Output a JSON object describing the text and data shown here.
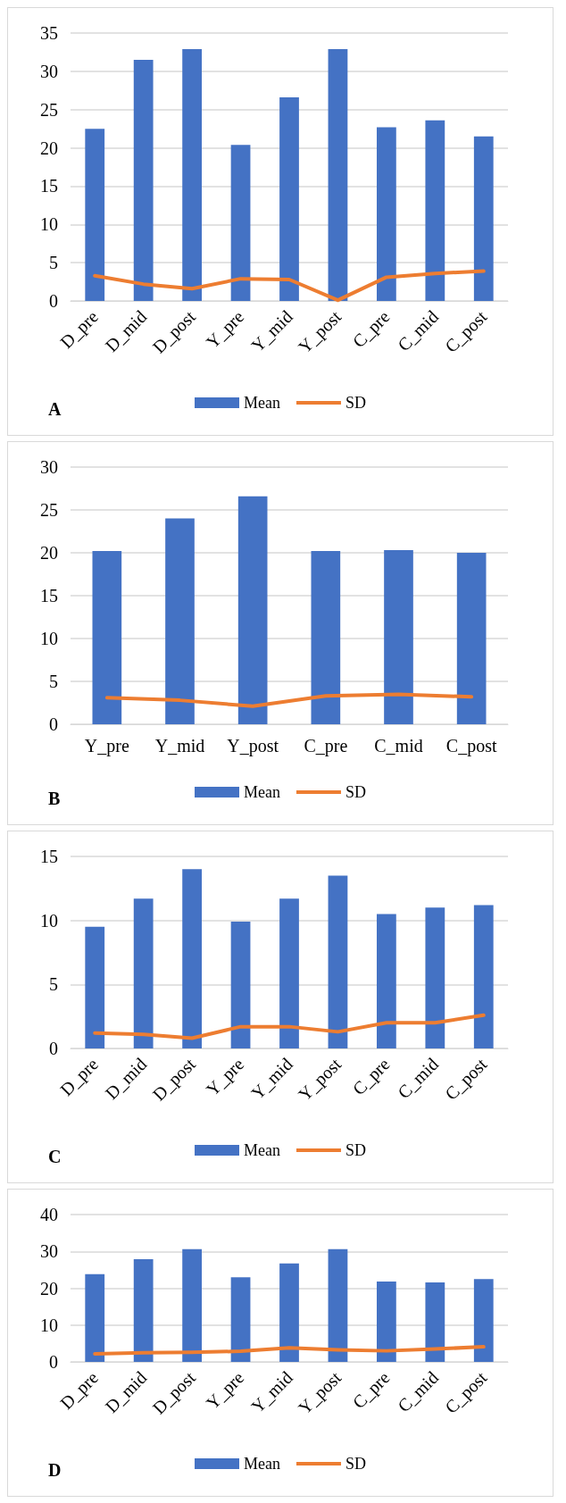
{
  "chart_data": [
    {
      "type": "bar",
      "title": "A",
      "categories": [
        "D_pre",
        "D_mid",
        "D_post",
        "Y_pre",
        "Y_mid",
        "Y_post",
        "C_pre",
        "C_mid",
        "C_post"
      ],
      "series": [
        {
          "name": "Mean",
          "color": "#4472c4",
          "values": [
            22.5,
            31.5,
            32.9,
            20.4,
            26.6,
            32.9,
            22.7,
            23.6,
            21.5
          ]
        },
        {
          "name": "SD",
          "type": "line",
          "color": "#ed7d31",
          "values": [
            3.3,
            2.2,
            1.6,
            2.9,
            2.8,
            0.1,
            3.1,
            3.6,
            3.9
          ]
        }
      ],
      "ylim": [
        0,
        35
      ],
      "yticks": [
        0,
        5,
        10,
        15,
        20,
        25,
        30,
        35
      ],
      "grid": "y",
      "legend": "bottom",
      "marker": "none",
      "line_style": "solid"
    },
    {
      "type": "bar",
      "title": "B",
      "categories": [
        "Y_pre",
        "Y_mid",
        "Y_post",
        "C_pre",
        "C_mid",
        "C_post"
      ],
      "series": [
        {
          "name": "Mean",
          "color": "#4472c4",
          "values": [
            20.2,
            24.0,
            26.6,
            20.2,
            20.3,
            20.0
          ]
        },
        {
          "name": "SD",
          "type": "line",
          "color": "#ed7d31",
          "values": [
            3.1,
            2.8,
            2.1,
            3.3,
            3.5,
            3.2
          ]
        }
      ],
      "ylim": [
        0,
        30
      ],
      "yticks": [
        0,
        5,
        10,
        15,
        20,
        25,
        30
      ],
      "grid": "y",
      "legend": "bottom",
      "marker": "none",
      "line_style": "solid"
    },
    {
      "type": "bar",
      "title": "C",
      "categories": [
        "D_pre",
        "D_mid",
        "D_post",
        "Y_pre",
        "Y_mid",
        "Y_post",
        "C_pre",
        "C_mid",
        "C_post"
      ],
      "series": [
        {
          "name": "Mean",
          "color": "#4472c4",
          "values": [
            9.5,
            11.7,
            14.0,
            9.9,
            11.7,
            13.5,
            10.5,
            11.0,
            11.2
          ]
        },
        {
          "name": "SD",
          "type": "line",
          "color": "#ed7d31",
          "values": [
            1.2,
            1.1,
            0.8,
            1.7,
            1.7,
            1.3,
            2.0,
            2.0,
            2.6
          ]
        }
      ],
      "ylim": [
        0,
        15
      ],
      "yticks": [
        0,
        5,
        10,
        15
      ],
      "grid": "y",
      "legend": "bottom",
      "marker": "none",
      "line_style": "solid"
    },
    {
      "type": "bar",
      "title": "D",
      "categories": [
        "D_pre",
        "D_mid",
        "D_post",
        "Y_pre",
        "Y_mid",
        "Y_post",
        "C_pre",
        "C_mid",
        "C_post"
      ],
      "series": [
        {
          "name": "Mean",
          "color": "#4472c4",
          "values": [
            23.8,
            27.9,
            30.6,
            23.0,
            26.7,
            30.6,
            21.8,
            21.6,
            22.5
          ]
        },
        {
          "name": "SD",
          "type": "line",
          "color": "#ed7d31",
          "values": [
            2.2,
            2.5,
            2.6,
            2.9,
            3.8,
            3.3,
            3.0,
            3.5,
            4.1
          ]
        }
      ],
      "ylim": [
        0,
        40
      ],
      "yticks": [
        0,
        10,
        20,
        30,
        40
      ],
      "grid": "y",
      "legend": "bottom",
      "marker": "none",
      "line_style": "solid"
    }
  ]
}
